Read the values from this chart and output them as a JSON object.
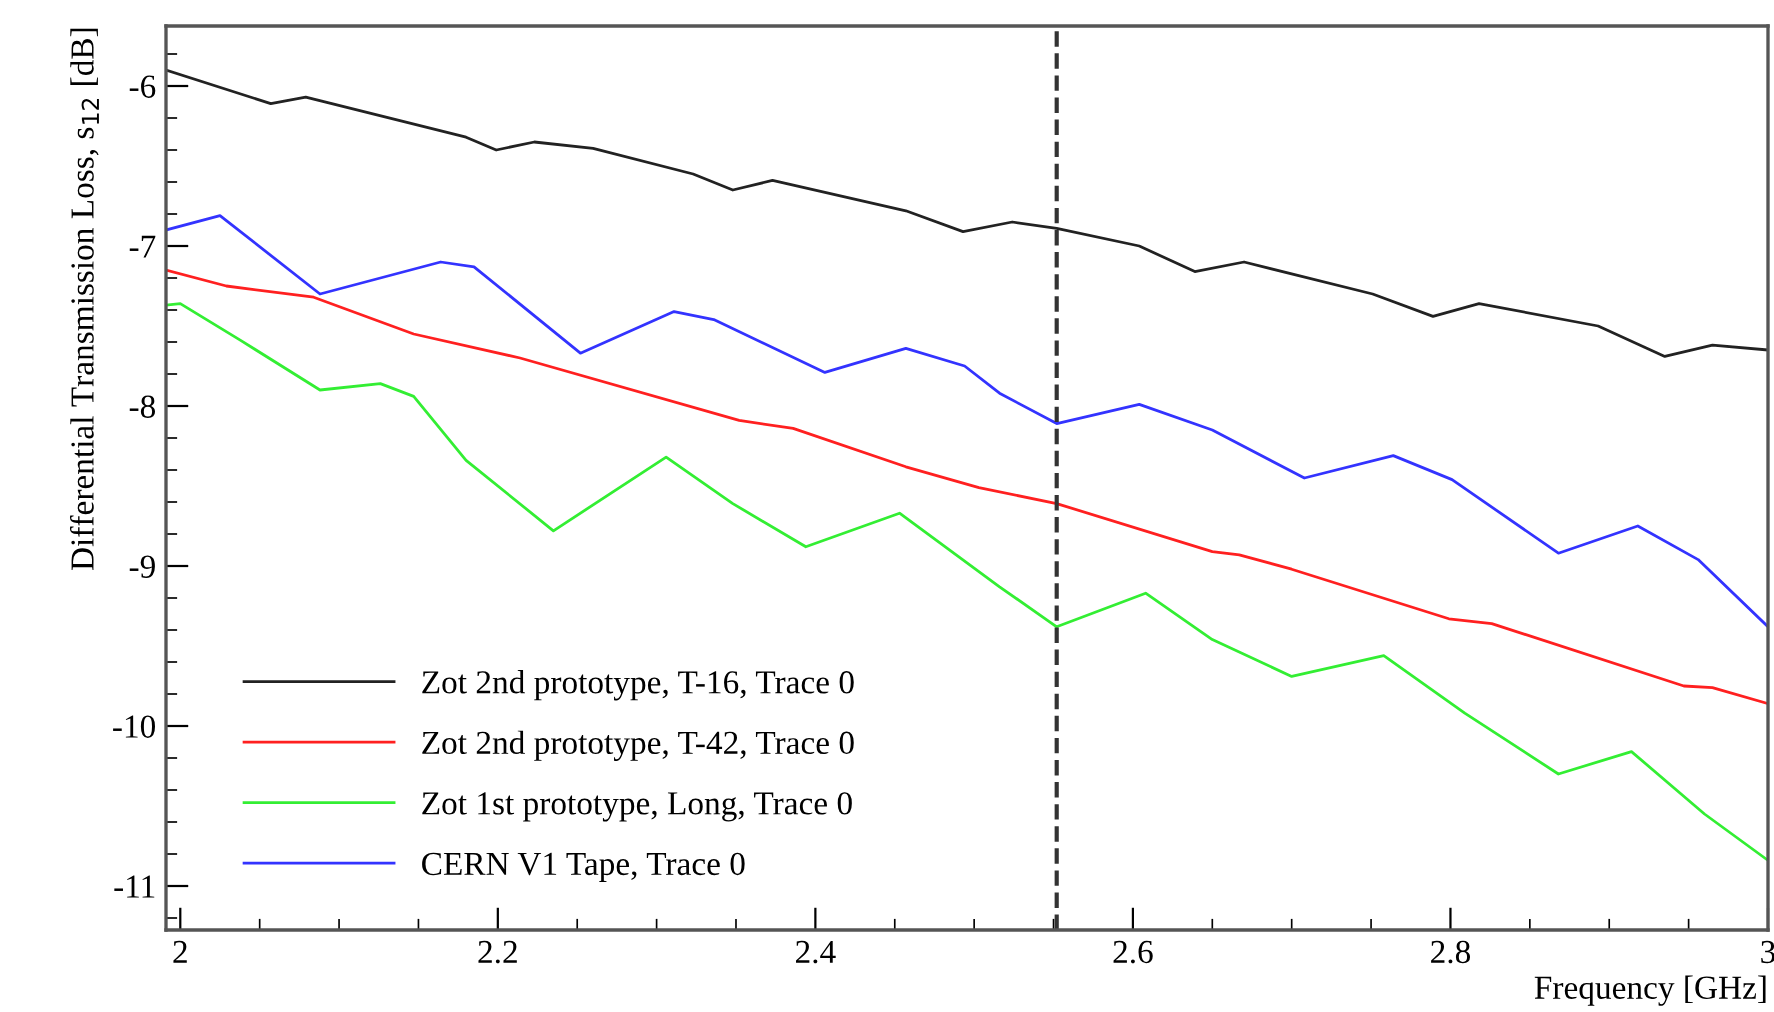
{
  "chart_data": {
    "type": "line",
    "xlabel": "Frequency [GHz]",
    "ylabel": "Differential Transmission Loss, s$_{12}$ [dB]",
    "xlim": [
      1.991,
      3.0
    ],
    "xticks": [
      2,
      2.2,
      2.4,
      2.6,
      2.8,
      3
    ],
    "ylim": [
      -11.275,
      -5.625
    ],
    "yticks": [
      -11,
      -10,
      -9,
      -8,
      -7,
      -6
    ],
    "grid": false,
    "legend": "bottom left",
    "line_style": "solid",
    "marker": "none",
    "ref_lines": [
      {
        "axis": "x",
        "value": 2.552,
        "color": "#333333",
        "line_style": "dashed"
      }
    ],
    "series": [
      {
        "name": "Zot 2nd prototype, T-16, Trace 0",
        "color": "#222222",
        "x": [
          1.991,
          2.057,
          2.079,
          2.18,
          2.199,
          2.223,
          2.26,
          2.323,
          2.348,
          2.373,
          2.457,
          2.493,
          2.524,
          2.552,
          2.604,
          2.639,
          2.67,
          2.751,
          2.789,
          2.818,
          2.893,
          2.935,
          2.965,
          3.0
        ],
        "values": [
          -5.9,
          -6.11,
          -6.07,
          -6.32,
          -6.4,
          -6.35,
          -6.39,
          -6.55,
          -6.65,
          -6.59,
          -6.78,
          -6.91,
          -6.85,
          -6.89,
          -7.0,
          -7.16,
          -7.1,
          -7.3,
          -7.44,
          -7.36,
          -7.5,
          -7.69,
          -7.62,
          -7.65
        ]
      },
      {
        "name": "Zot 2nd prototype, T-42, Trace 0",
        "color": "#ff2020",
        "x": [
          1.991,
          2.029,
          2.084,
          2.147,
          2.214,
          2.352,
          2.386,
          2.457,
          2.503,
          2.552,
          2.65,
          2.667,
          2.7,
          2.799,
          2.826,
          2.947,
          2.965,
          3.0
        ],
        "values": [
          -7.15,
          -7.25,
          -7.32,
          -7.55,
          -7.7,
          -8.09,
          -8.14,
          -8.38,
          -8.51,
          -8.61,
          -8.91,
          -8.93,
          -9.02,
          -9.33,
          -9.36,
          -9.75,
          -9.76,
          -9.86
        ]
      },
      {
        "name": "Zot 1st prototype, Long, Trace 0",
        "color": "#33ee33",
        "x": [
          1.991,
          2.0,
          2.038,
          2.088,
          2.126,
          2.147,
          2.18,
          2.235,
          2.306,
          2.348,
          2.394,
          2.453,
          2.516,
          2.552,
          2.608,
          2.65,
          2.7,
          2.758,
          2.809,
          2.868,
          2.914,
          2.96,
          3.0
        ],
        "values": [
          -7.37,
          -7.36,
          -7.59,
          -7.9,
          -7.86,
          -7.94,
          -8.34,
          -8.78,
          -8.32,
          -8.61,
          -8.88,
          -8.67,
          -9.13,
          -9.38,
          -9.17,
          -9.46,
          -9.69,
          -9.56,
          -9.92,
          -10.3,
          -10.16,
          -10.55,
          -10.84
        ]
      },
      {
        "name": "CERN V1 Tape, Trace 0",
        "color": "#3333ff",
        "x": [
          1.991,
          2.025,
          2.088,
          2.164,
          2.185,
          2.252,
          2.311,
          2.336,
          2.406,
          2.457,
          2.494,
          2.516,
          2.552,
          2.604,
          2.65,
          2.708,
          2.764,
          2.801,
          2.868,
          2.918,
          2.956,
          3.0
        ],
        "values": [
          -6.9,
          -6.81,
          -7.3,
          -7.1,
          -7.13,
          -7.67,
          -7.41,
          -7.46,
          -7.79,
          -7.64,
          -7.75,
          -7.92,
          -8.11,
          -7.99,
          -8.15,
          -8.45,
          -8.31,
          -8.46,
          -8.92,
          -8.75,
          -8.96,
          -9.38
        ]
      }
    ]
  }
}
